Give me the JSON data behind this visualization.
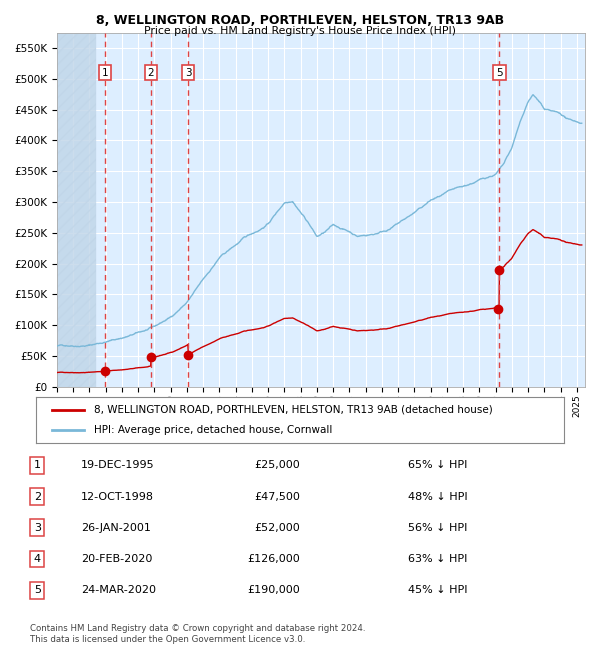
{
  "title_line1": "8, WELLINGTON ROAD, PORTHLEVEN, HELSTON, TR13 9AB",
  "title_line2": "Price paid vs. HM Land Registry's House Price Index (HPI)",
  "xlim_start": 1993.0,
  "xlim_end": 2025.5,
  "ylim_min": 0,
  "ylim_max": 575000,
  "yticks": [
    0,
    50000,
    100000,
    150000,
    200000,
    250000,
    300000,
    350000,
    400000,
    450000,
    500000,
    550000
  ],
  "ytick_labels": [
    "£0",
    "£50K",
    "£100K",
    "£150K",
    "£200K",
    "£250K",
    "£300K",
    "£350K",
    "£400K",
    "£450K",
    "£500K",
    "£550K"
  ],
  "transactions": [
    {
      "id": 1,
      "date_num": 1995.97,
      "price": 25000,
      "label": "19-DEC-1995",
      "price_str": "£25,000",
      "hpi_str": "65% ↓ HPI"
    },
    {
      "id": 2,
      "date_num": 1998.78,
      "price": 47500,
      "label": "12-OCT-1998",
      "price_str": "£47,500",
      "hpi_str": "48% ↓ HPI"
    },
    {
      "id": 3,
      "date_num": 2001.07,
      "price": 52000,
      "label": "26-JAN-2001",
      "price_str": "£52,000",
      "hpi_str": "56% ↓ HPI"
    },
    {
      "id": 4,
      "date_num": 2020.13,
      "price": 126000,
      "label": "20-FEB-2020",
      "price_str": "£126,000",
      "hpi_str": "63% ↓ HPI"
    },
    {
      "id": 5,
      "date_num": 2020.23,
      "price": 190000,
      "label": "24-MAR-2020",
      "price_str": "£190,000",
      "hpi_str": "45% ↓ HPI"
    }
  ],
  "visible_vlines": [
    1,
    2,
    3,
    5
  ],
  "legend_line1": "8, WELLINGTON ROAD, PORTHLEVEN, HELSTON, TR13 9AB (detached house)",
  "legend_line2": "HPI: Average price, detached house, Cornwall",
  "table_data": [
    [
      "1",
      "19-DEC-1995",
      "£25,000",
      "65% ↓ HPI"
    ],
    [
      "2",
      "12-OCT-1998",
      "£47,500",
      "48% ↓ HPI"
    ],
    [
      "3",
      "26-JAN-2001",
      "£52,000",
      "56% ↓ HPI"
    ],
    [
      "4",
      "20-FEB-2020",
      "£126,000",
      "63% ↓ HPI"
    ],
    [
      "5",
      "24-MAR-2020",
      "£190,000",
      "45% ↓ HPI"
    ]
  ],
  "footnote": "Contains HM Land Registry data © Crown copyright and database right 2024.\nThis data is licensed under the Open Government Licence v3.0.",
  "hpi_color": "#7ab8d8",
  "price_color": "#cc0000",
  "vline_color": "#dd4444",
  "background_color": "#ddeeff",
  "grid_color": "#ffffff",
  "hatch_color": "#c0d5e8"
}
